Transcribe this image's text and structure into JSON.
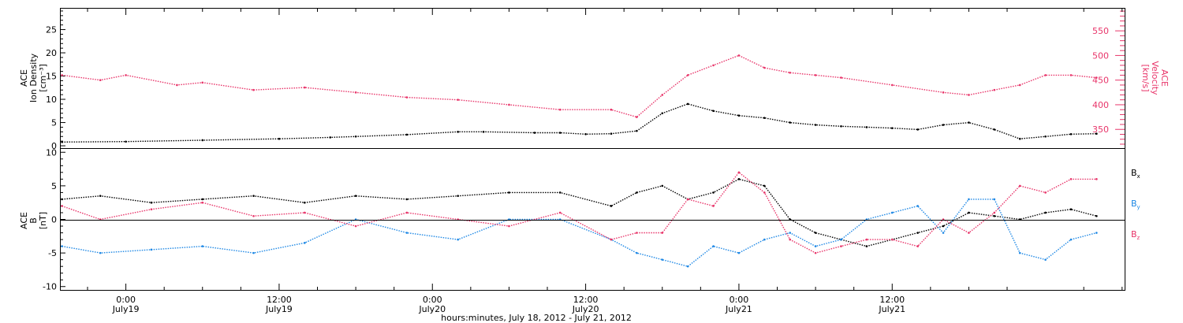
{
  "chart_data": [
    {
      "type": "scatter",
      "panel": "top",
      "ylabel_left": [
        "ACE",
        "Ion Density",
        "[cm⁻³]"
      ],
      "ylabel_right": [
        "ACE",
        "Velocity",
        "[km/s]"
      ],
      "left_ticks": [
        "0",
        "5",
        "10",
        "15",
        "20",
        "25"
      ],
      "right_ticks": [
        "350",
        "400",
        "450",
        "500",
        "550"
      ],
      "ylim_left": [
        -0.5,
        29.5
      ],
      "ylim_right": [
        312,
        595
      ],
      "x_unit": "hours since 2012-07-18 00:00 UT",
      "xlim": [
        18.9,
        102.2
      ],
      "series": [
        {
          "axis": "left",
          "color": "#000000",
          "x": [
            19.0,
            24,
            30,
            36,
            40,
            42,
            46,
            50,
            52,
            56,
            58,
            60,
            62,
            64,
            66,
            68,
            70,
            72,
            74,
            76,
            78,
            80,
            82,
            84,
            86,
            88,
            90,
            92,
            94,
            96,
            98,
            100
          ],
          "values": [
            0.8,
            0.9,
            1.2,
            1.5,
            1.8,
            2.0,
            2.4,
            3.0,
            3.0,
            2.8,
            2.8,
            2.5,
            2.6,
            3.2,
            7.0,
            9.0,
            7.5,
            6.5,
            6.0,
            5.0,
            4.5,
            4.2,
            4.0,
            3.8,
            3.5,
            4.5,
            5.0,
            3.5,
            1.5,
            2.0,
            2.5,
            2.6
          ]
        },
        {
          "axis": "right",
          "color": "#e8356a",
          "x": [
            19.0,
            22,
            24,
            28,
            30,
            34,
            38,
            42,
            46,
            50,
            54,
            58,
            62,
            64,
            66,
            68,
            70,
            72,
            74,
            76,
            78,
            80,
            84,
            88,
            90,
            92,
            94,
            96,
            98,
            100
          ],
          "values": [
            460,
            450,
            460,
            440,
            445,
            430,
            435,
            425,
            415,
            410,
            400,
            390,
            390,
            375,
            420,
            460,
            480,
            500,
            475,
            465,
            460,
            455,
            440,
            425,
            420,
            430,
            440,
            460,
            460,
            455
          ]
        }
      ]
    },
    {
      "type": "scatter",
      "panel": "bottom",
      "ylabel_left": [
        "ACE",
        "B",
        "[nT]"
      ],
      "left_ticks": [
        "-10",
        "-5",
        "0",
        "5",
        "10"
      ],
      "ylim_left": [
        -10.5,
        10.5
      ],
      "x_unit": "hours since 2012-07-18 00:00 UT",
      "xlim": [
        18.9,
        102.2
      ],
      "legend_position": "right",
      "series": [
        {
          "name": "Bx",
          "color": "#000000",
          "x": [
            19.0,
            22,
            26,
            30,
            34,
            38,
            42,
            46,
            50,
            54,
            58,
            62,
            64,
            66,
            68,
            70,
            72,
            74,
            76,
            78,
            80,
            82,
            84,
            86,
            88,
            90,
            92,
            94,
            96,
            98,
            100
          ],
          "values": [
            3.0,
            3.5,
            2.5,
            3.0,
            3.5,
            2.5,
            3.5,
            3.0,
            3.5,
            4.0,
            4.0,
            2.0,
            4.0,
            5.0,
            3.0,
            4.0,
            6.0,
            5.0,
            0.0,
            -2.0,
            -3.0,
            -4.0,
            -3.0,
            -2.0,
            -1.0,
            1.0,
            0.5,
            0.0,
            1.0,
            1.5,
            0.5
          ]
        },
        {
          "name": "By",
          "color": "#1e88e5",
          "x": [
            19.0,
            22,
            26,
            30,
            34,
            38,
            42,
            46,
            50,
            54,
            58,
            62,
            64,
            66,
            68,
            70,
            72,
            74,
            76,
            78,
            80,
            82,
            84,
            86,
            88,
            90,
            92,
            94,
            96,
            98,
            100
          ],
          "values": [
            -4.0,
            -5.0,
            -4.5,
            -4.0,
            -5.0,
            -3.5,
            0.0,
            -2.0,
            -3.0,
            0.0,
            0.0,
            -3.0,
            -5.0,
            -6.0,
            -7.0,
            -4.0,
            -5.0,
            -3.0,
            -2.0,
            -4.0,
            -3.0,
            0.0,
            1.0,
            2.0,
            -2.0,
            3.0,
            3.0,
            -5.0,
            -6.0,
            -3.0,
            -2.0
          ]
        },
        {
          "name": "Bz",
          "color": "#e8356a",
          "x": [
            19.0,
            22,
            26,
            30,
            34,
            38,
            42,
            46,
            50,
            54,
            58,
            62,
            64,
            66,
            68,
            70,
            72,
            74,
            76,
            78,
            80,
            82,
            84,
            86,
            88,
            90,
            92,
            94,
            96,
            98,
            100
          ],
          "values": [
            2.0,
            0.0,
            1.5,
            2.5,
            0.5,
            1.0,
            -1.0,
            1.0,
            0.0,
            -1.0,
            1.0,
            -3.0,
            -2.0,
            -2.0,
            3.0,
            2.0,
            7.0,
            4.0,
            -3.0,
            -5.0,
            -4.0,
            -3.0,
            -3.0,
            -4.0,
            0.0,
            -2.0,
            1.0,
            5.0,
            4.0,
            6.0,
            6.0
          ]
        }
      ]
    }
  ],
  "legend": {
    "bx": {
      "base": "B",
      "sub": "x"
    },
    "by": {
      "base": "B",
      "sub": "y"
    },
    "bz": {
      "base": "B",
      "sub": "z"
    }
  },
  "x_axis": {
    "ticks": [
      {
        "hour": 24,
        "time": "0:00",
        "day": "July19"
      },
      {
        "hour": 36,
        "time": "12:00",
        "day": "July19"
      },
      {
        "hour": 48,
        "time": "0:00",
        "day": "July20"
      },
      {
        "hour": 60,
        "time": "12:00",
        "day": "July20"
      },
      {
        "hour": 72,
        "time": "0:00",
        "day": "July21"
      },
      {
        "hour": 84,
        "time": "12:00",
        "day": "July21"
      }
    ],
    "label": "hours:minutes, July 18, 2012 - July 21, 2012"
  },
  "colors": {
    "black": "#000000",
    "pink": "#e8356a",
    "blue": "#1e88e5"
  }
}
